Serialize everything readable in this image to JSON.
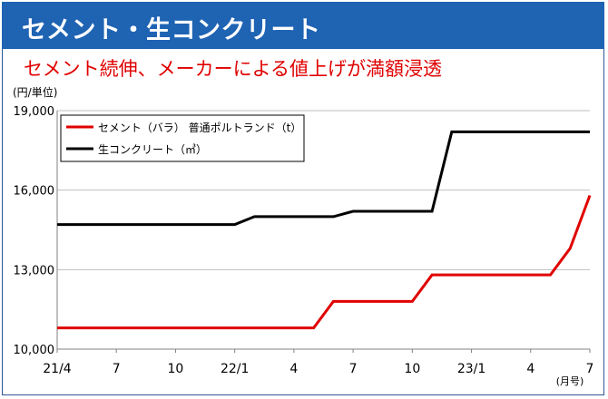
{
  "header": {
    "title": "セメント・生コンクリート",
    "subtitle": "セメント続伸、メーカーによる値上げが満額浸透"
  },
  "chart_data": {
    "type": "line",
    "ylabel": "(円/単位)",
    "xunit": "(月号)",
    "ylim": [
      10000,
      19000
    ],
    "yticks": [
      10000,
      13000,
      16000,
      19000
    ],
    "ytick_labels": [
      "10,000",
      "13,000",
      "16,000",
      "19,000"
    ],
    "xlim": [
      0,
      27
    ],
    "xticks": [
      0,
      3,
      6,
      9,
      12,
      15,
      18,
      21,
      24,
      27
    ],
    "xtick_labels": [
      "21/4",
      "7",
      "10",
      "22/1",
      "4",
      "7",
      "10",
      "23/1",
      "4",
      "7"
    ],
    "grid": "horizontal",
    "legend_position": "top-left",
    "series": [
      {
        "name": "セメント（バラ） 普通ポルトランド（t）",
        "color": "#e00000",
        "points": [
          [
            0,
            10800
          ],
          [
            13,
            10800
          ],
          [
            14,
            11800
          ],
          [
            18,
            11800
          ],
          [
            19,
            12800
          ],
          [
            25,
            12800
          ],
          [
            26,
            13800
          ],
          [
            27,
            15800
          ]
        ]
      },
      {
        "name": "生コンクリート（㎥）",
        "color": "#000000",
        "points": [
          [
            0,
            14700
          ],
          [
            9,
            14700
          ],
          [
            10,
            15000
          ],
          [
            14,
            15000
          ],
          [
            15,
            15200
          ],
          [
            19,
            15200
          ],
          [
            20,
            18200
          ],
          [
            27,
            18200
          ]
        ]
      }
    ]
  }
}
